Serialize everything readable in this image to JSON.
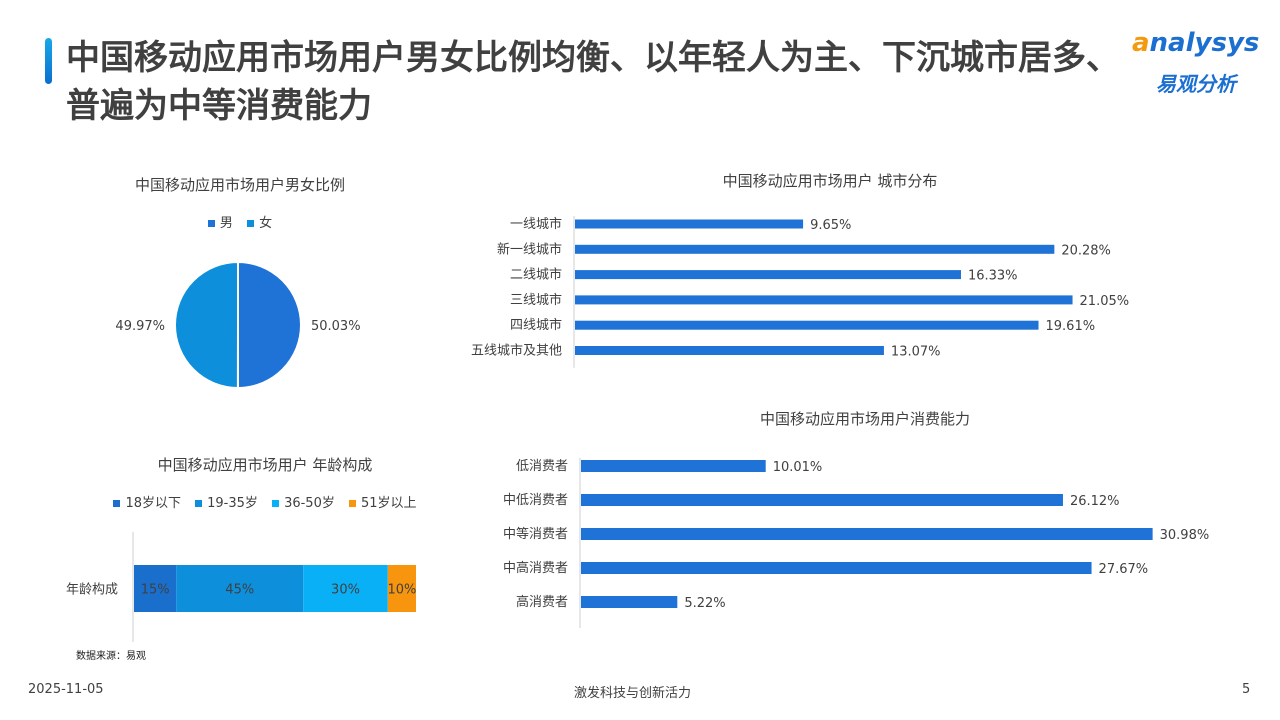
{
  "page": {
    "title": "中国移动应用市场用户男女比例均衡、以年轻人为主、下沉城市居多、普遍为中等消费能力",
    "source": "数据来源：易观",
    "date": "2025-11-05",
    "slogan": "激发科技与创新活力",
    "page_number": "5"
  },
  "logo": {
    "word_first": "a",
    "word_rest": "nalysys",
    "sub": "易观分析"
  },
  "colors": {
    "bar": "#1f72d6",
    "male": "#1f72d6",
    "female": "#0d8fdc",
    "age": [
      "#1a6fcd",
      "#0d8fdc",
      "#0ab0f5",
      "#f7960e"
    ]
  },
  "chart_data": [
    {
      "id": "gender",
      "type": "pie",
      "title": "中国移动应用市场用户男女比例",
      "labels": [
        "男",
        "女"
      ],
      "values": [
        50.03,
        49.97
      ],
      "value_labels": [
        "50.03%",
        "49.97%"
      ],
      "legend": "top"
    },
    {
      "id": "city",
      "type": "bar",
      "orientation": "horizontal",
      "title": "中国移动应用市场用户 城市分布",
      "categories": [
        "一线城市",
        "新一线城市",
        "二线城市",
        "三线城市",
        "四线城市",
        "五线城市及其他"
      ],
      "values": [
        9.65,
        20.28,
        16.33,
        21.05,
        19.61,
        13.07
      ],
      "value_labels": [
        "9.65%",
        "20.28%",
        "16.33%",
        "21.05%",
        "19.61%",
        "13.07%"
      ],
      "xlim": [
        0,
        22
      ]
    },
    {
      "id": "age",
      "type": "bar",
      "orientation": "horizontal",
      "stacked": true,
      "title": "中国移动应用市场用户 年龄构成",
      "categories": [
        "年龄构成"
      ],
      "series": [
        {
          "name": "18岁以下",
          "values": [
            15
          ],
          "label": "15%"
        },
        {
          "name": "19-35岁",
          "values": [
            45
          ],
          "label": "45%"
        },
        {
          "name": "36-50岁",
          "values": [
            30
          ],
          "label": "30%"
        },
        {
          "name": "51岁以上",
          "values": [
            10
          ],
          "label": "10%"
        }
      ],
      "legend": "top"
    },
    {
      "id": "consumption",
      "type": "bar",
      "orientation": "horizontal",
      "title": "中国移动应用市场用户消费能力",
      "categories": [
        "低消费者",
        "中低消费者",
        "中等消费者",
        "中高消费者",
        "高消费者"
      ],
      "values": [
        10.01,
        26.12,
        30.98,
        27.67,
        5.22
      ],
      "value_labels": [
        "10.01%",
        "26.12%",
        "30.98%",
        "27.67%",
        "5.22%"
      ],
      "xlim": [
        0,
        31
      ]
    }
  ]
}
